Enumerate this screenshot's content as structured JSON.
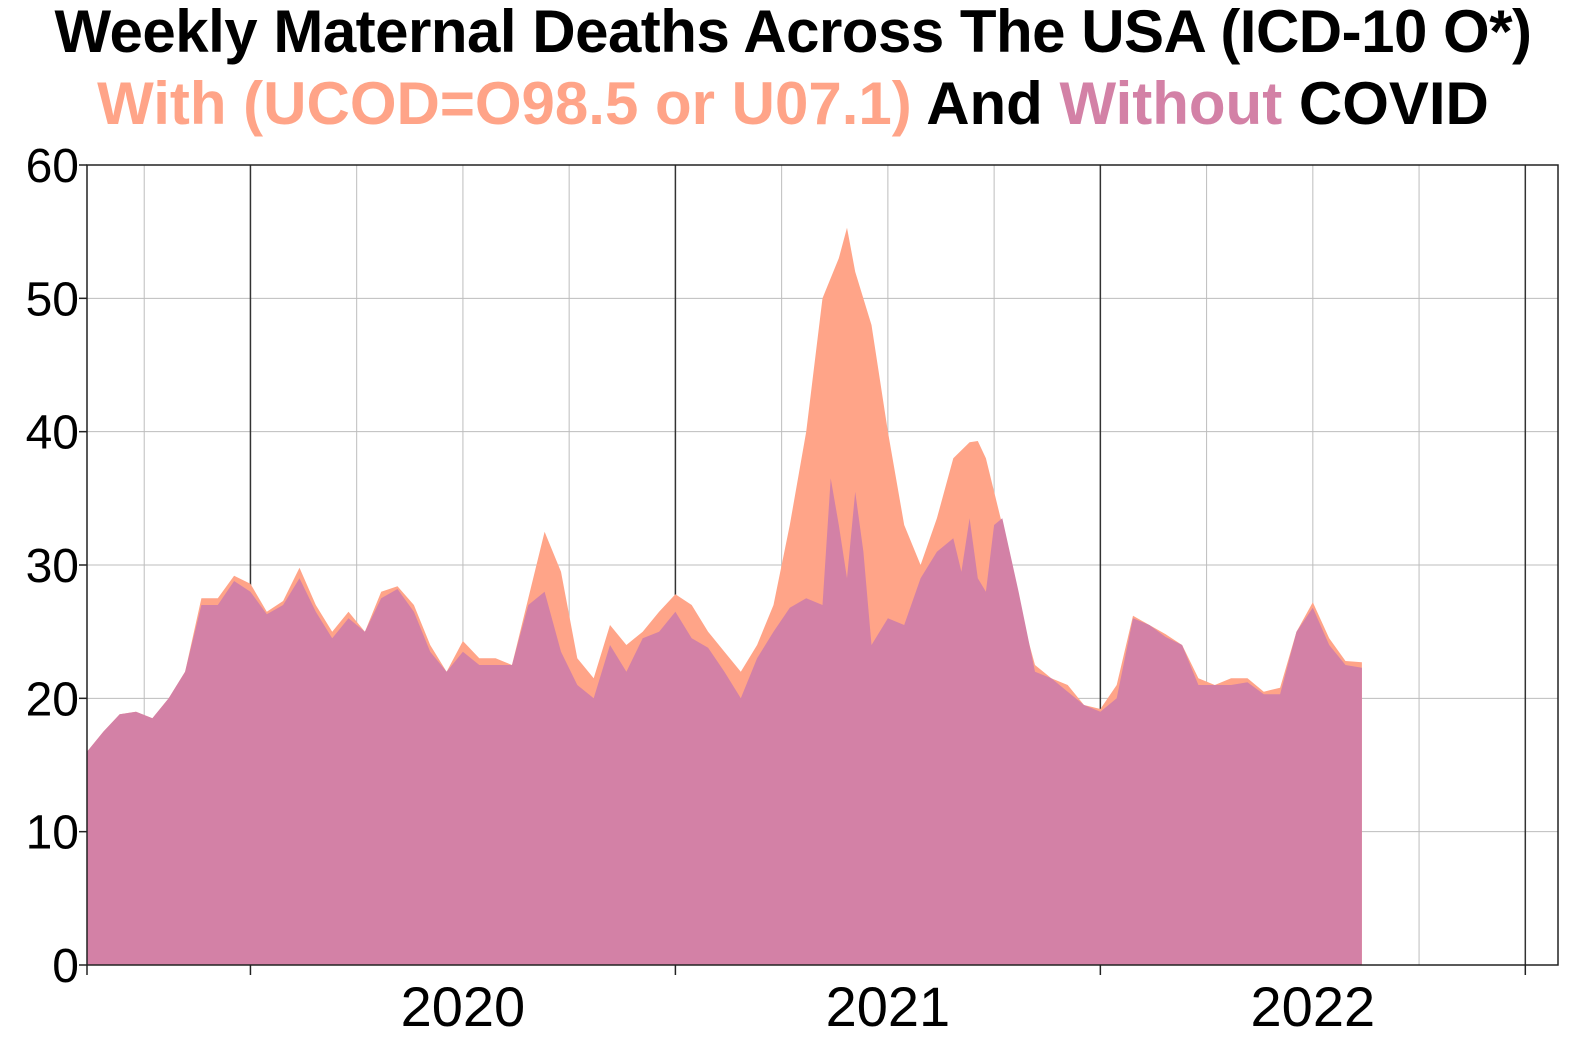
{
  "title": {
    "line1": "Weekly Maternal Deaths Across The USA (ICD-10 O*)",
    "line2_part1": "With (UCOD=O98.5 or U07.1)",
    "line2_part2": " And ",
    "line2_part3": "Without",
    "line2_part4": " COVID"
  },
  "colors": {
    "with_covid": "#ffa488",
    "without_covid": "#d381a6",
    "text": "#000000"
  },
  "chart_data": {
    "type": "area",
    "title": "Weekly Maternal Deaths Across The USA (ICD-10 O*) With (UCOD=O98.5 or U07.1) And Without COVID",
    "xlabel": "",
    "ylabel": "",
    "x_unit": "weeks since start of 2020 (52 per year)",
    "xlim": [
      -20,
      160
    ],
    "ylim": [
      0,
      60
    ],
    "y_ticks": [
      "0",
      "10",
      "20",
      "30",
      "40",
      "50",
      "60"
    ],
    "x_tick_labels": [
      {
        "label": "2020",
        "x": 26
      },
      {
        "label": "2021",
        "x": 78
      },
      {
        "label": "2022",
        "x": 130
      }
    ],
    "grid": true,
    "series": [
      {
        "name": "With COVID",
        "points": [
          [
            -20,
            16
          ],
          [
            -18,
            17.5
          ],
          [
            -16,
            18.8
          ],
          [
            -14,
            19
          ],
          [
            -12,
            18.5
          ],
          [
            -10,
            20
          ],
          [
            -8,
            22
          ],
          [
            -6,
            27.5
          ],
          [
            -4,
            27.5
          ],
          [
            -2,
            29.2
          ],
          [
            0,
            28.6
          ],
          [
            2,
            26.5
          ],
          [
            4,
            27.3
          ],
          [
            6,
            29.8
          ],
          [
            8,
            27
          ],
          [
            10,
            25
          ],
          [
            12,
            26.5
          ],
          [
            14,
            25
          ],
          [
            16,
            28
          ],
          [
            18,
            28.4
          ],
          [
            20,
            27
          ],
          [
            22,
            24
          ],
          [
            24,
            22
          ],
          [
            26,
            24.3
          ],
          [
            28,
            23
          ],
          [
            30,
            23
          ],
          [
            32,
            22.5
          ],
          [
            34,
            27.5
          ],
          [
            36,
            32.5
          ],
          [
            38,
            29.5
          ],
          [
            40,
            23
          ],
          [
            42,
            21.5
          ],
          [
            44,
            25.5
          ],
          [
            46,
            24
          ],
          [
            48,
            25
          ],
          [
            50,
            26.5
          ],
          [
            52,
            27.8
          ],
          [
            54,
            27
          ],
          [
            56,
            25
          ],
          [
            58,
            23.5
          ],
          [
            60,
            22
          ],
          [
            62,
            24
          ],
          [
            64,
            27
          ],
          [
            66,
            33
          ],
          [
            68,
            40
          ],
          [
            70,
            50
          ],
          [
            72,
            53
          ],
          [
            73,
            55.3
          ],
          [
            74,
            52
          ],
          [
            76,
            48
          ],
          [
            78,
            40
          ],
          [
            80,
            33
          ],
          [
            82,
            30
          ],
          [
            84,
            33.5
          ],
          [
            86,
            38
          ],
          [
            88,
            39.2
          ],
          [
            89,
            39.3
          ],
          [
            90,
            38
          ],
          [
            92,
            33
          ],
          [
            94,
            27
          ],
          [
            96,
            22.5
          ],
          [
            98,
            21.5
          ],
          [
            100,
            21
          ],
          [
            102,
            19.5
          ],
          [
            104,
            19.2
          ],
          [
            106,
            21
          ],
          [
            108,
            26.2
          ],
          [
            110,
            25.5
          ],
          [
            112,
            24.8
          ],
          [
            114,
            24
          ],
          [
            116,
            21.5
          ],
          [
            118,
            21
          ],
          [
            120,
            21.5
          ],
          [
            122,
            21.5
          ],
          [
            124,
            20.5
          ],
          [
            126,
            20.8
          ],
          [
            128,
            25
          ],
          [
            130,
            27.2
          ],
          [
            132,
            24.5
          ],
          [
            134,
            22.8
          ],
          [
            136,
            22.7
          ]
        ]
      },
      {
        "name": "Without COVID",
        "points": [
          [
            -20,
            16
          ],
          [
            -18,
            17.5
          ],
          [
            -16,
            18.8
          ],
          [
            -14,
            19
          ],
          [
            -12,
            18.5
          ],
          [
            -10,
            20
          ],
          [
            -8,
            22
          ],
          [
            -6,
            27
          ],
          [
            -4,
            27
          ],
          [
            -2,
            28.8
          ],
          [
            0,
            28
          ],
          [
            2,
            26.3
          ],
          [
            4,
            27
          ],
          [
            6,
            29
          ],
          [
            8,
            26.5
          ],
          [
            10,
            24.5
          ],
          [
            12,
            26
          ],
          [
            14,
            25
          ],
          [
            16,
            27.5
          ],
          [
            18,
            28.2
          ],
          [
            20,
            26.5
          ],
          [
            22,
            23.5
          ],
          [
            24,
            22
          ],
          [
            26,
            23.5
          ],
          [
            28,
            22.5
          ],
          [
            30,
            22.5
          ],
          [
            32,
            22.5
          ],
          [
            34,
            27
          ],
          [
            36,
            28
          ],
          [
            38,
            23.5
          ],
          [
            40,
            21
          ],
          [
            42,
            20
          ],
          [
            44,
            24
          ],
          [
            46,
            22
          ],
          [
            48,
            24.5
          ],
          [
            50,
            25
          ],
          [
            52,
            26.5
          ],
          [
            54,
            24.5
          ],
          [
            56,
            23.8
          ],
          [
            58,
            22
          ],
          [
            60,
            20
          ],
          [
            62,
            23
          ],
          [
            64,
            25
          ],
          [
            66,
            26.8
          ],
          [
            68,
            27.5
          ],
          [
            70,
            27
          ],
          [
            71,
            36.5
          ],
          [
            72,
            33
          ],
          [
            73,
            29
          ],
          [
            74,
            35.5
          ],
          [
            75,
            31
          ],
          [
            76,
            24
          ],
          [
            78,
            26
          ],
          [
            80,
            25.5
          ],
          [
            82,
            29
          ],
          [
            84,
            31
          ],
          [
            86,
            32
          ],
          [
            87,
            29.5
          ],
          [
            88,
            33.5
          ],
          [
            89,
            29
          ],
          [
            90,
            28
          ],
          [
            91,
            33
          ],
          [
            92,
            33.5
          ],
          [
            94,
            28
          ],
          [
            96,
            22
          ],
          [
            98,
            21.5
          ],
          [
            100,
            20.5
          ],
          [
            102,
            19.5
          ],
          [
            104,
            19
          ],
          [
            106,
            20
          ],
          [
            108,
            26
          ],
          [
            110,
            25.5
          ],
          [
            112,
            24.6
          ],
          [
            114,
            24
          ],
          [
            116,
            21
          ],
          [
            118,
            21
          ],
          [
            120,
            21
          ],
          [
            122,
            21.2
          ],
          [
            124,
            20.3
          ],
          [
            126,
            20.3
          ],
          [
            128,
            25
          ],
          [
            130,
            26.8
          ],
          [
            132,
            24
          ],
          [
            134,
            22.5
          ],
          [
            136,
            22.3
          ]
        ]
      }
    ]
  }
}
